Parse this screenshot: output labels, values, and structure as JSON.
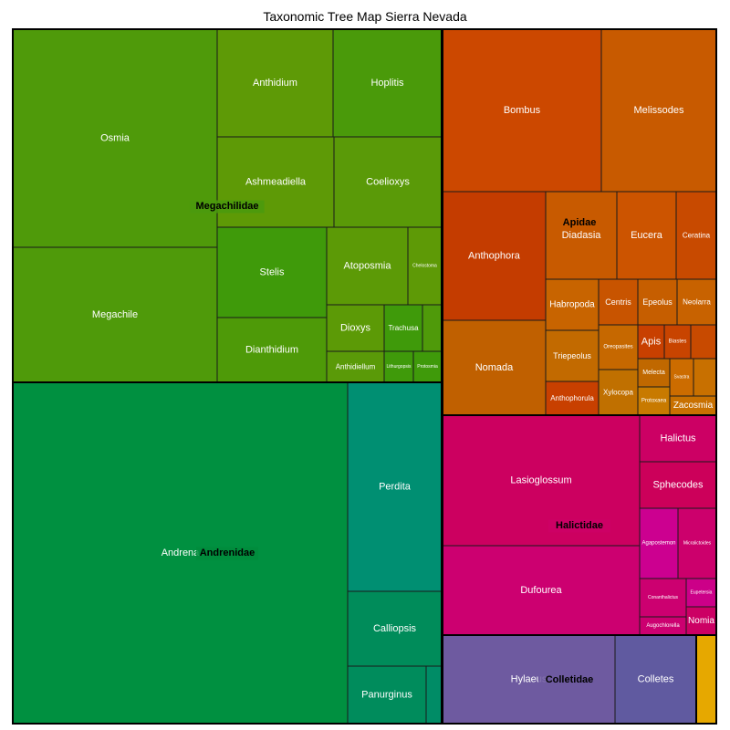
{
  "chart_data": {
    "type": "treemap",
    "title": "Taxonomic Tree Map Sierra Nevada",
    "families": [
      {
        "name": "Megachilidae",
        "color": "#4a9a0e",
        "genera": [
          {
            "name": "Osmia",
            "value": 8.98,
            "color": "#4f9a0a"
          },
          {
            "name": "Megachile",
            "value": 5.54,
            "color": "#4f9a0a"
          },
          {
            "name": "Anthidium",
            "value": 2.06,
            "color": "#5e9a06"
          },
          {
            "name": "Hoplitis",
            "value": 1.94,
            "color": "#4a9a0a"
          },
          {
            "name": "Ashmeadiella",
            "value": 2.05,
            "color": "#5e9a06"
          },
          {
            "name": "Coelioxys",
            "value": 1.84,
            "color": "#5a9a08"
          },
          {
            "name": "Stelis",
            "value": 1.88,
            "color": "#3f9a0a"
          },
          {
            "name": "Dianthidium",
            "value": 1.82,
            "color": "#4e9a08"
          },
          {
            "name": "Atoposmia",
            "value": 1.3,
            "color": "#5c9a06"
          },
          {
            "name": "Chelostoma",
            "value": 0.53,
            "color": "#5e9a06"
          },
          {
            "name": "Dioxys",
            "value": 0.52,
            "color": "#5c9a06"
          },
          {
            "name": "Trachusa",
            "value": 0.36,
            "color": "#3f9a0a"
          },
          {
            "name": "",
            "value": 0.17,
            "color": "#4f9a0a"
          },
          {
            "name": "Anthidiellum",
            "value": 0.45,
            "color": "#5a9a08"
          },
          {
            "name": "Lithurgopsis",
            "value": 0.24,
            "color": "#3f9a0a"
          },
          {
            "name": "Protosmia",
            "value": 0.23,
            "color": "#3f9a0a"
          }
        ]
      },
      {
        "name": "Apidae",
        "color": "#c85a00",
        "genera": [
          {
            "name": "Bombus",
            "value": 3.84,
            "color": "#cc4800"
          },
          {
            "name": "Melissodes",
            "value": 2.71,
            "color": "#c85a00"
          },
          {
            "name": "Anthophora",
            "value": 2.9,
            "color": "#c43c00"
          },
          {
            "name": "Nomada",
            "value": 2.38,
            "color": "#c06000"
          },
          {
            "name": "Diadasia",
            "value": 1.41,
            "color": "#c85a00"
          },
          {
            "name": "Eucera",
            "value": 1.17,
            "color": "#cc5400"
          },
          {
            "name": "Ceratina",
            "value": 0.78,
            "color": "#c84a00"
          },
          {
            "name": "Habropoda",
            "value": 0.65,
            "color": "#c86400"
          },
          {
            "name": "Triepeolus",
            "value": 0.66,
            "color": "#c26a00"
          },
          {
            "name": "Anthophorula",
            "value": 0.36,
            "color": "#c84000"
          },
          {
            "name": "Centris",
            "value": 0.39,
            "color": "#c85400"
          },
          {
            "name": "Epeolus",
            "value": 0.39,
            "color": "#c65e00"
          },
          {
            "name": "Neolarra",
            "value": 0.39,
            "color": "#c86200"
          },
          {
            "name": "Oreopasites",
            "value": 0.41,
            "color": "#c66800"
          },
          {
            "name": "Xylocopa",
            "value": 0.4,
            "color": "#c07000"
          },
          {
            "name": "Apis",
            "value": 0.23,
            "color": "#c84000"
          },
          {
            "name": "Biastes",
            "value": 0.23,
            "color": "#c84400"
          },
          {
            "name": "",
            "value": 0.21,
            "color": "#c84a00"
          },
          {
            "name": "Melecta",
            "value": 0.22,
            "color": "#c06800"
          },
          {
            "name": "Svastra",
            "value": 0.21,
            "color": "#cc6c00"
          },
          {
            "name": "",
            "value": 0.21,
            "color": "#c87000"
          },
          {
            "name": "Protoxaea",
            "value": 0.23,
            "color": "#c87a00"
          },
          {
            "name": "Zacosmia",
            "value": 0.37,
            "color": "#c87000"
          }
        ]
      },
      {
        "name": "Andrenidae",
        "color": "#008c3c",
        "genera": [
          {
            "name": "Andrena",
            "value": 17.81,
            "color": "#009040"
          },
          {
            "name": "Perdita",
            "value": 2.63,
            "color": "#008f72"
          },
          {
            "name": "Calliopsis",
            "value": 1.25,
            "color": "#008c5a"
          },
          {
            "name": "Panurginus",
            "value": 1.21,
            "color": "#008c5c"
          },
          {
            "name": "",
            "value": 0.19,
            "color": "#008c66"
          }
        ]
      },
      {
        "name": "Halictidae",
        "color": "#cc0066",
        "genera": [
          {
            "name": "Lasioglossum",
            "value": 4.82,
            "color": "#cc0060"
          },
          {
            "name": "Dufourea",
            "value": 3.49,
            "color": "#cc0070"
          },
          {
            "name": "Halictus",
            "value": 1.0,
            "color": "#cc0064"
          },
          {
            "name": "Sphecodes",
            "value": 1.13,
            "color": "#cc005a"
          },
          {
            "name": "Agapostemon",
            "value": 0.83,
            "color": "#cc0090"
          },
          {
            "name": "Micralictoides",
            "value": 0.7,
            "color": "#cc006c"
          },
          {
            "name": "Conanthalictus",
            "value": 0.53,
            "color": "#cc0070"
          },
          {
            "name": "Augochlorella",
            "value": 0.27,
            "color": "#cc0070"
          },
          {
            "name": "Eupetersia",
            "value": 0.34,
            "color": "#cc0088"
          },
          {
            "name": "Nomia",
            "value": 0.33,
            "color": "#cc0064"
          }
        ]
      },
      {
        "name": "Colletidae",
        "color": "#6e5aa0",
        "genera": [
          {
            "name": "Hylaeus",
            "value": 3.05,
            "color": "#6e5aa0"
          },
          {
            "name": "Colletes",
            "value": 1.63,
            "color": "#605aa0"
          }
        ]
      },
      {
        "name": "",
        "color": "#e6a800",
        "genera": [
          {
            "name": "",
            "value": 0.34,
            "color": "#e6a800"
          }
        ]
      }
    ]
  }
}
